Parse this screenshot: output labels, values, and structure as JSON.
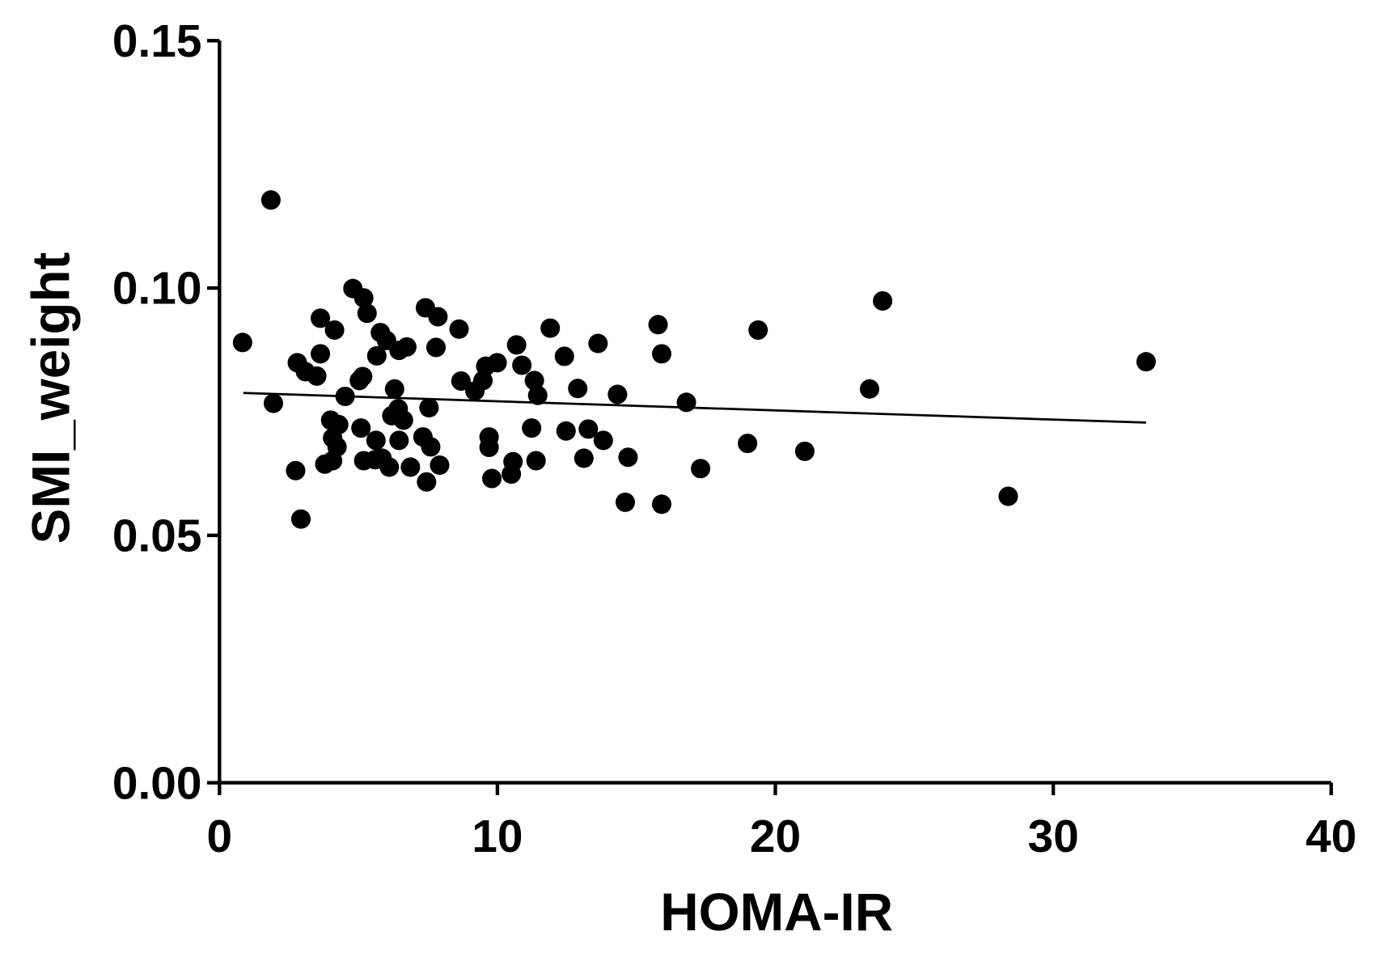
{
  "chart_data": {
    "type": "scatter",
    "xlabel": "HOMA-IR",
    "ylabel": "SMI_weight",
    "xlim": [
      0,
      40
    ],
    "ylim": [
      0,
      0.15
    ],
    "xticks": [
      0,
      10,
      20,
      30,
      40
    ],
    "yticks": [
      {
        "value": 0,
        "label": "0.00"
      },
      {
        "value": 0.05,
        "label": "0.05"
      },
      {
        "value": 0.1,
        "label": "0.10"
      },
      0.15
    ],
    "color": "#000000",
    "points": {
      "x": [
        0.83,
        1.85,
        1.94,
        2.74,
        2.93,
        2.8,
        3.09,
        3.5,
        3.63,
        3.63,
        4.14,
        3.79,
        4.07,
        4.0,
        4.07,
        4.29,
        4.23,
        4.52,
        4.8,
        5.19,
        5.31,
        5.03,
        5.15,
        5.09,
        5.19,
        5.63,
        5.6,
        5.79,
        5.66,
        6.01,
        6.3,
        6.2,
        6.43,
        6.62,
        6.46,
        5.85,
        6.11,
        6.46,
        6.74,
        6.87,
        7.41,
        7.86,
        7.79,
        7.54,
        7.32,
        7.6,
        7.45,
        7.92,
        8.62,
        8.69,
        9.19,
        9.48,
        9.58,
        9.99,
        9.7,
        9.7,
        9.8,
        10.69,
        10.88,
        11.33,
        11.45,
        11.23,
        11.39,
        10.56,
        10.5,
        11.9,
        12.41,
        12.47,
        12.89,
        13.27,
        13.11,
        13.62,
        13.81,
        14.32,
        14.7,
        14.6,
        15.78,
        15.91,
        15.91,
        16.8,
        17.31,
        19.0,
        19.38,
        21.06,
        23.39,
        23.86,
        28.38,
        33.34
      ],
      "values": [
        0.089,
        0.1178,
        0.0767,
        0.0631,
        0.0533,
        0.0849,
        0.0831,
        0.0822,
        0.0939,
        0.0867,
        0.0915,
        0.0644,
        0.0651,
        0.0733,
        0.0697,
        0.0724,
        0.0679,
        0.0781,
        0.0999,
        0.098,
        0.0949,
        0.0813,
        0.0821,
        0.0717,
        0.0651,
        0.0692,
        0.0653,
        0.091,
        0.0863,
        0.0894,
        0.0796,
        0.0742,
        0.0756,
        0.0733,
        0.0692,
        0.0656,
        0.0638,
        0.0874,
        0.0881,
        0.0638,
        0.096,
        0.0942,
        0.088,
        0.0758,
        0.0699,
        0.0679,
        0.0608,
        0.0642,
        0.0917,
        0.0812,
        0.0792,
        0.0813,
        0.0842,
        0.0849,
        0.0699,
        0.0678,
        0.0615,
        0.0885,
        0.0844,
        0.0813,
        0.0783,
        0.0717,
        0.0651,
        0.0649,
        0.0624,
        0.0919,
        0.0862,
        0.0711,
        0.0797,
        0.0715,
        0.0656,
        0.0888,
        0.0692,
        0.0785,
        0.0658,
        0.0567,
        0.0926,
        0.0867,
        0.0563,
        0.0769,
        0.0635,
        0.0686,
        0.0915,
        0.067,
        0.0796,
        0.0974,
        0.0579,
        0.0851
      ]
    },
    "fit_line": {
      "x": [
        0.86,
        33.34
      ],
      "values": [
        0.0788,
        0.0728
      ]
    }
  }
}
